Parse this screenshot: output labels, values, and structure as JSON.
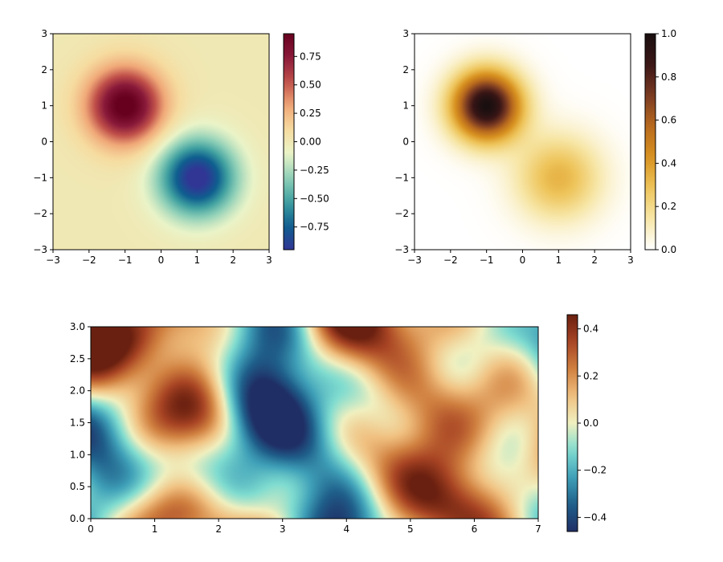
{
  "chart_data": [
    {
      "type": "heatmap",
      "title": "",
      "xlabel": "",
      "ylabel": "",
      "xlim": [
        -3,
        3
      ],
      "ylim": [
        -3,
        3
      ],
      "xticks": [
        "−3",
        "−2",
        "−1",
        "0",
        "1",
        "2",
        "3"
      ],
      "yticks": [
        "−3",
        "−2",
        "−1",
        "0",
        "1",
        "2",
        "3"
      ],
      "colormap": [
        "#313695",
        "#0f5f8f",
        "#3fa0a0",
        "#8fd0b8",
        "#eaf4c8",
        "#f6dca0",
        "#f0a878",
        "#c0504a",
        "#8a1a3a",
        "#67001f"
      ],
      "peaks": [
        {
          "x": -1,
          "y": 1,
          "value": 0.95,
          "kind": "maximum"
        },
        {
          "x": 1,
          "y": -1,
          "value": -0.95,
          "kind": "minimum"
        }
      ],
      "colorbar": {
        "range": [
          -0.95,
          0.95
        ],
        "ticks": [
          {
            "value": 0.75,
            "label": "0.75"
          },
          {
            "value": 0.5,
            "label": "0.50"
          },
          {
            "value": 0.25,
            "label": "0.25"
          },
          {
            "value": 0.0,
            "label": "0.00"
          },
          {
            "value": -0.25,
            "label": "−0.25"
          },
          {
            "value": -0.5,
            "label": "−0.50"
          },
          {
            "value": -0.75,
            "label": "−0.75"
          }
        ]
      }
    },
    {
      "type": "heatmap",
      "title": "",
      "xlabel": "",
      "ylabel": "",
      "xlim": [
        -3,
        3
      ],
      "ylim": [
        -3,
        3
      ],
      "xticks": [
        "−3",
        "−2",
        "−1",
        "0",
        "1",
        "2",
        "3"
      ],
      "yticks": [
        "−3",
        "−2",
        "−1",
        "0",
        "1",
        "2",
        "3"
      ],
      "colormap": [
        "#ffffff",
        "#f7e7a8",
        "#eec45a",
        "#d89220",
        "#b86a1e",
        "#7a3a22",
        "#3a1616",
        "#1a0f10"
      ],
      "peaks": [
        {
          "x": -1,
          "y": 1,
          "value": 1.0,
          "kind": "maximum"
        },
        {
          "x": 1,
          "y": -1,
          "value": 0.35,
          "kind": "local-maximum"
        }
      ],
      "colorbar": {
        "range": [
          0.0,
          1.0
        ],
        "ticks": [
          {
            "value": 1.0,
            "label": "1.0"
          },
          {
            "value": 0.8,
            "label": "0.8"
          },
          {
            "value": 0.6,
            "label": "0.6"
          },
          {
            "value": 0.4,
            "label": "0.4"
          },
          {
            "value": 0.2,
            "label": "0.2"
          },
          {
            "value": 0.0,
            "label": "0.0"
          }
        ]
      }
    },
    {
      "type": "heatmap",
      "title": "",
      "xlabel": "",
      "ylabel": "",
      "xlim": [
        0,
        7
      ],
      "ylim": [
        0,
        3
      ],
      "xticks": [
        "0",
        "1",
        "2",
        "3",
        "4",
        "5",
        "6",
        "7"
      ],
      "yticks": [
        "0.0",
        "0.5",
        "1.0",
        "1.5",
        "2.0",
        "2.5",
        "3.0"
      ],
      "colormap": [
        "#1f2f66",
        "#1f5f8a",
        "#3fa0b8",
        "#7fdcd0",
        "#f0f0c0",
        "#f0c080",
        "#d08040",
        "#a84424",
        "#6a2010"
      ],
      "field": "random-noise",
      "colorbar": {
        "range": [
          -0.46,
          0.46
        ],
        "ticks": [
          {
            "value": 0.4,
            "label": "0.4"
          },
          {
            "value": 0.2,
            "label": "0.2"
          },
          {
            "value": 0.0,
            "label": "0.0"
          },
          {
            "value": -0.2,
            "label": "−0.2"
          },
          {
            "value": -0.4,
            "label": "−0.4"
          }
        ]
      }
    }
  ]
}
